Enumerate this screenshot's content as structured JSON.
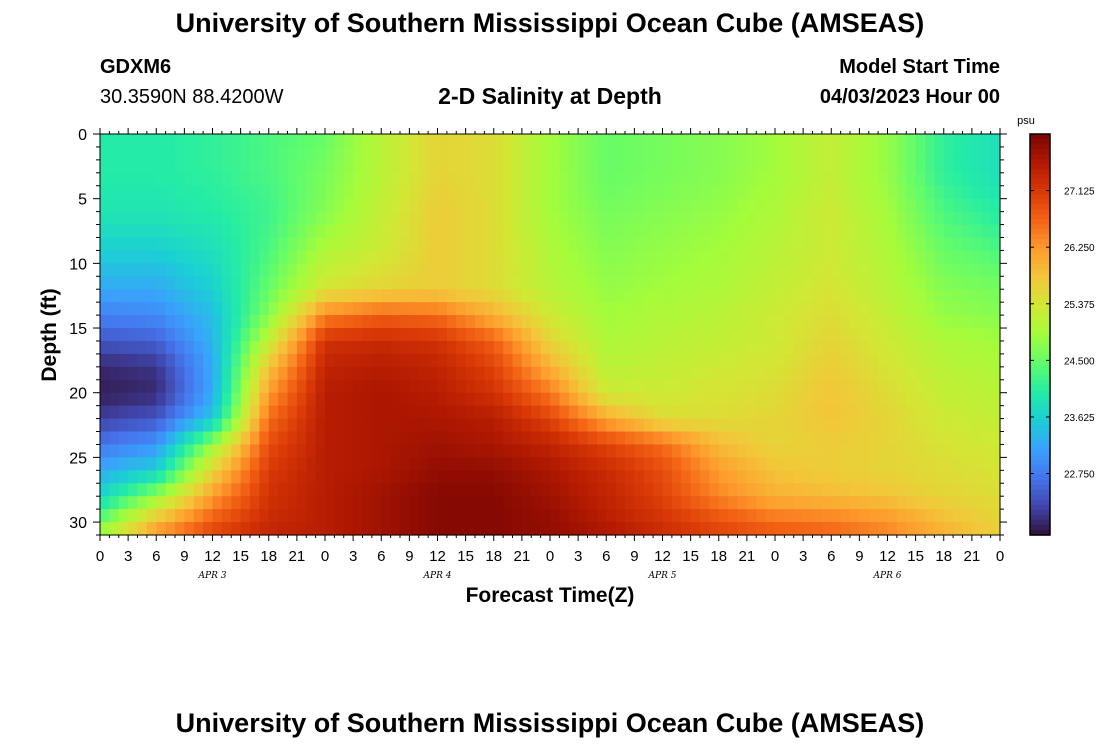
{
  "page_title": "University of Southern Mississippi Ocean Cube (AMSEAS)",
  "station": {
    "id": "GDXM6",
    "coords": "30.3590N  88.4200W"
  },
  "model_start": {
    "label": "Model Start Time",
    "value": "04/03/2023 Hour 00"
  },
  "footer_title": "University of Southern Mississippi Ocean Cube (AMSEAS)",
  "chart_data": {
    "type": "heatmap",
    "title": "2-D Salinity at Depth",
    "xlabel": "Forecast Time(Z)",
    "ylabel": "Depth (ft)",
    "x_unit": "hours since 04/03/2023 00Z",
    "x_range": [
      0,
      96
    ],
    "x_tick_step_hours": 3,
    "x_tick_labels": [
      "0",
      "3",
      "6",
      "9",
      "12",
      "15",
      "18",
      "21",
      "0",
      "3",
      "6",
      "9",
      "12",
      "15",
      "18",
      "21",
      "0",
      "3",
      "6",
      "9",
      "12",
      "15",
      "18",
      "21",
      "0",
      "3",
      "6",
      "9",
      "12",
      "15",
      "18",
      "21",
      "0"
    ],
    "date_labels": [
      "APR 3",
      "APR 4",
      "APR 5",
      "APR 6"
    ],
    "y_range": [
      0,
      31
    ],
    "y_ticks": [
      0,
      5,
      10,
      15,
      20,
      25,
      30
    ],
    "y_inverted": true,
    "colorbar": {
      "unit": "psu",
      "min": 21.8,
      "max": 28.0,
      "tick_values": [
        27.125,
        26.25,
        25.375,
        24.5,
        23.625,
        22.75
      ],
      "tick_labels": [
        "27.125",
        "26.250",
        "25.375",
        "24.500",
        "23.625",
        "22.750"
      ],
      "colors": [
        "#30123b",
        "#4145ab",
        "#4675ed",
        "#39a2fc",
        "#1bcfd4",
        "#24eca6",
        "#61fc6c",
        "#a4fc3b",
        "#d1e834",
        "#f3c63a",
        "#fe9b2d",
        "#f36315",
        "#d93806",
        "#b11901",
        "#7a0403"
      ]
    },
    "depths_ft": [
      0,
      3,
      6,
      9,
      12,
      14,
      16,
      18,
      20,
      22,
      24,
      26,
      28,
      30,
      31
    ],
    "times_hours": [
      0,
      6,
      12,
      18,
      24,
      30,
      36,
      42,
      48,
      54,
      60,
      66,
      72,
      78,
      84,
      90,
      96
    ],
    "salinity_psu": [
      [
        24.0,
        24.0,
        24.1,
        24.3,
        24.5,
        25.1,
        25.6,
        25.5,
        24.9,
        24.5,
        24.6,
        24.7,
        24.9,
        25.2,
        24.8,
        24.1,
        23.8
      ],
      [
        24.0,
        24.0,
        24.1,
        24.3,
        24.6,
        25.1,
        25.6,
        25.5,
        24.9,
        24.5,
        24.6,
        24.7,
        24.9,
        25.2,
        24.8,
        24.1,
        23.8
      ],
      [
        23.9,
        23.9,
        24.0,
        24.2,
        24.7,
        25.2,
        25.7,
        25.5,
        24.9,
        24.6,
        24.7,
        24.8,
        25.0,
        25.3,
        24.9,
        24.3,
        24.0
      ],
      [
        23.6,
        23.6,
        23.8,
        24.3,
        25.0,
        25.3,
        25.7,
        25.5,
        25.0,
        24.7,
        24.8,
        24.9,
        25.1,
        25.3,
        25.0,
        24.5,
        24.3
      ],
      [
        23.2,
        23.2,
        23.6,
        24.5,
        25.4,
        25.6,
        25.7,
        25.5,
        25.1,
        24.8,
        24.9,
        25.0,
        25.2,
        25.4,
        25.1,
        24.7,
        24.6
      ],
      [
        22.8,
        22.9,
        23.4,
        24.7,
        26.4,
        26.7,
        26.6,
        26.0,
        25.3,
        24.9,
        25.0,
        25.1,
        25.3,
        25.5,
        25.2,
        24.8,
        24.7
      ],
      [
        22.4,
        22.5,
        23.3,
        25.2,
        27.2,
        27.3,
        27.2,
        26.7,
        25.6,
        25.0,
        25.1,
        25.2,
        25.3,
        25.6,
        25.3,
        25.0,
        24.9
      ],
      [
        22.0,
        22.1,
        23.2,
        25.8,
        27.4,
        27.5,
        27.4,
        27.0,
        26.0,
        25.1,
        25.2,
        25.3,
        25.4,
        25.7,
        25.4,
        25.1,
        25.0
      ],
      [
        21.9,
        22.0,
        23.2,
        26.2,
        27.5,
        27.6,
        27.5,
        27.2,
        26.5,
        25.3,
        25.3,
        25.4,
        25.5,
        25.8,
        25.5,
        25.2,
        25.1
      ],
      [
        22.2,
        22.4,
        23.5,
        26.6,
        27.5,
        27.6,
        27.6,
        27.5,
        27.0,
        26.1,
        25.5,
        25.5,
        25.6,
        25.8,
        25.6,
        25.3,
        25.2
      ],
      [
        22.7,
        23.0,
        24.8,
        26.9,
        27.5,
        27.6,
        27.7,
        27.6,
        27.4,
        27.0,
        26.6,
        25.9,
        25.6,
        25.7,
        25.6,
        25.4,
        25.3
      ],
      [
        23.2,
        23.6,
        25.6,
        27.1,
        27.5,
        27.6,
        27.8,
        27.8,
        27.6,
        27.3,
        26.9,
        26.2,
        25.8,
        25.7,
        25.6,
        25.5,
        25.4
      ],
      [
        23.7,
        24.8,
        26.2,
        27.2,
        27.5,
        27.7,
        27.9,
        27.9,
        27.7,
        27.4,
        27.0,
        26.4,
        26.0,
        25.9,
        25.8,
        25.6,
        25.5
      ],
      [
        24.5,
        25.9,
        26.8,
        27.3,
        27.5,
        27.7,
        27.9,
        27.9,
        27.8,
        27.5,
        27.2,
        26.9,
        26.6,
        26.5,
        26.3,
        25.9,
        25.6
      ],
      [
        25.0,
        26.3,
        27.0,
        27.4,
        27.5,
        27.7,
        27.9,
        27.9,
        27.8,
        27.6,
        27.3,
        27.0,
        26.8,
        26.7,
        26.4,
        26.0,
        25.7
      ]
    ]
  }
}
